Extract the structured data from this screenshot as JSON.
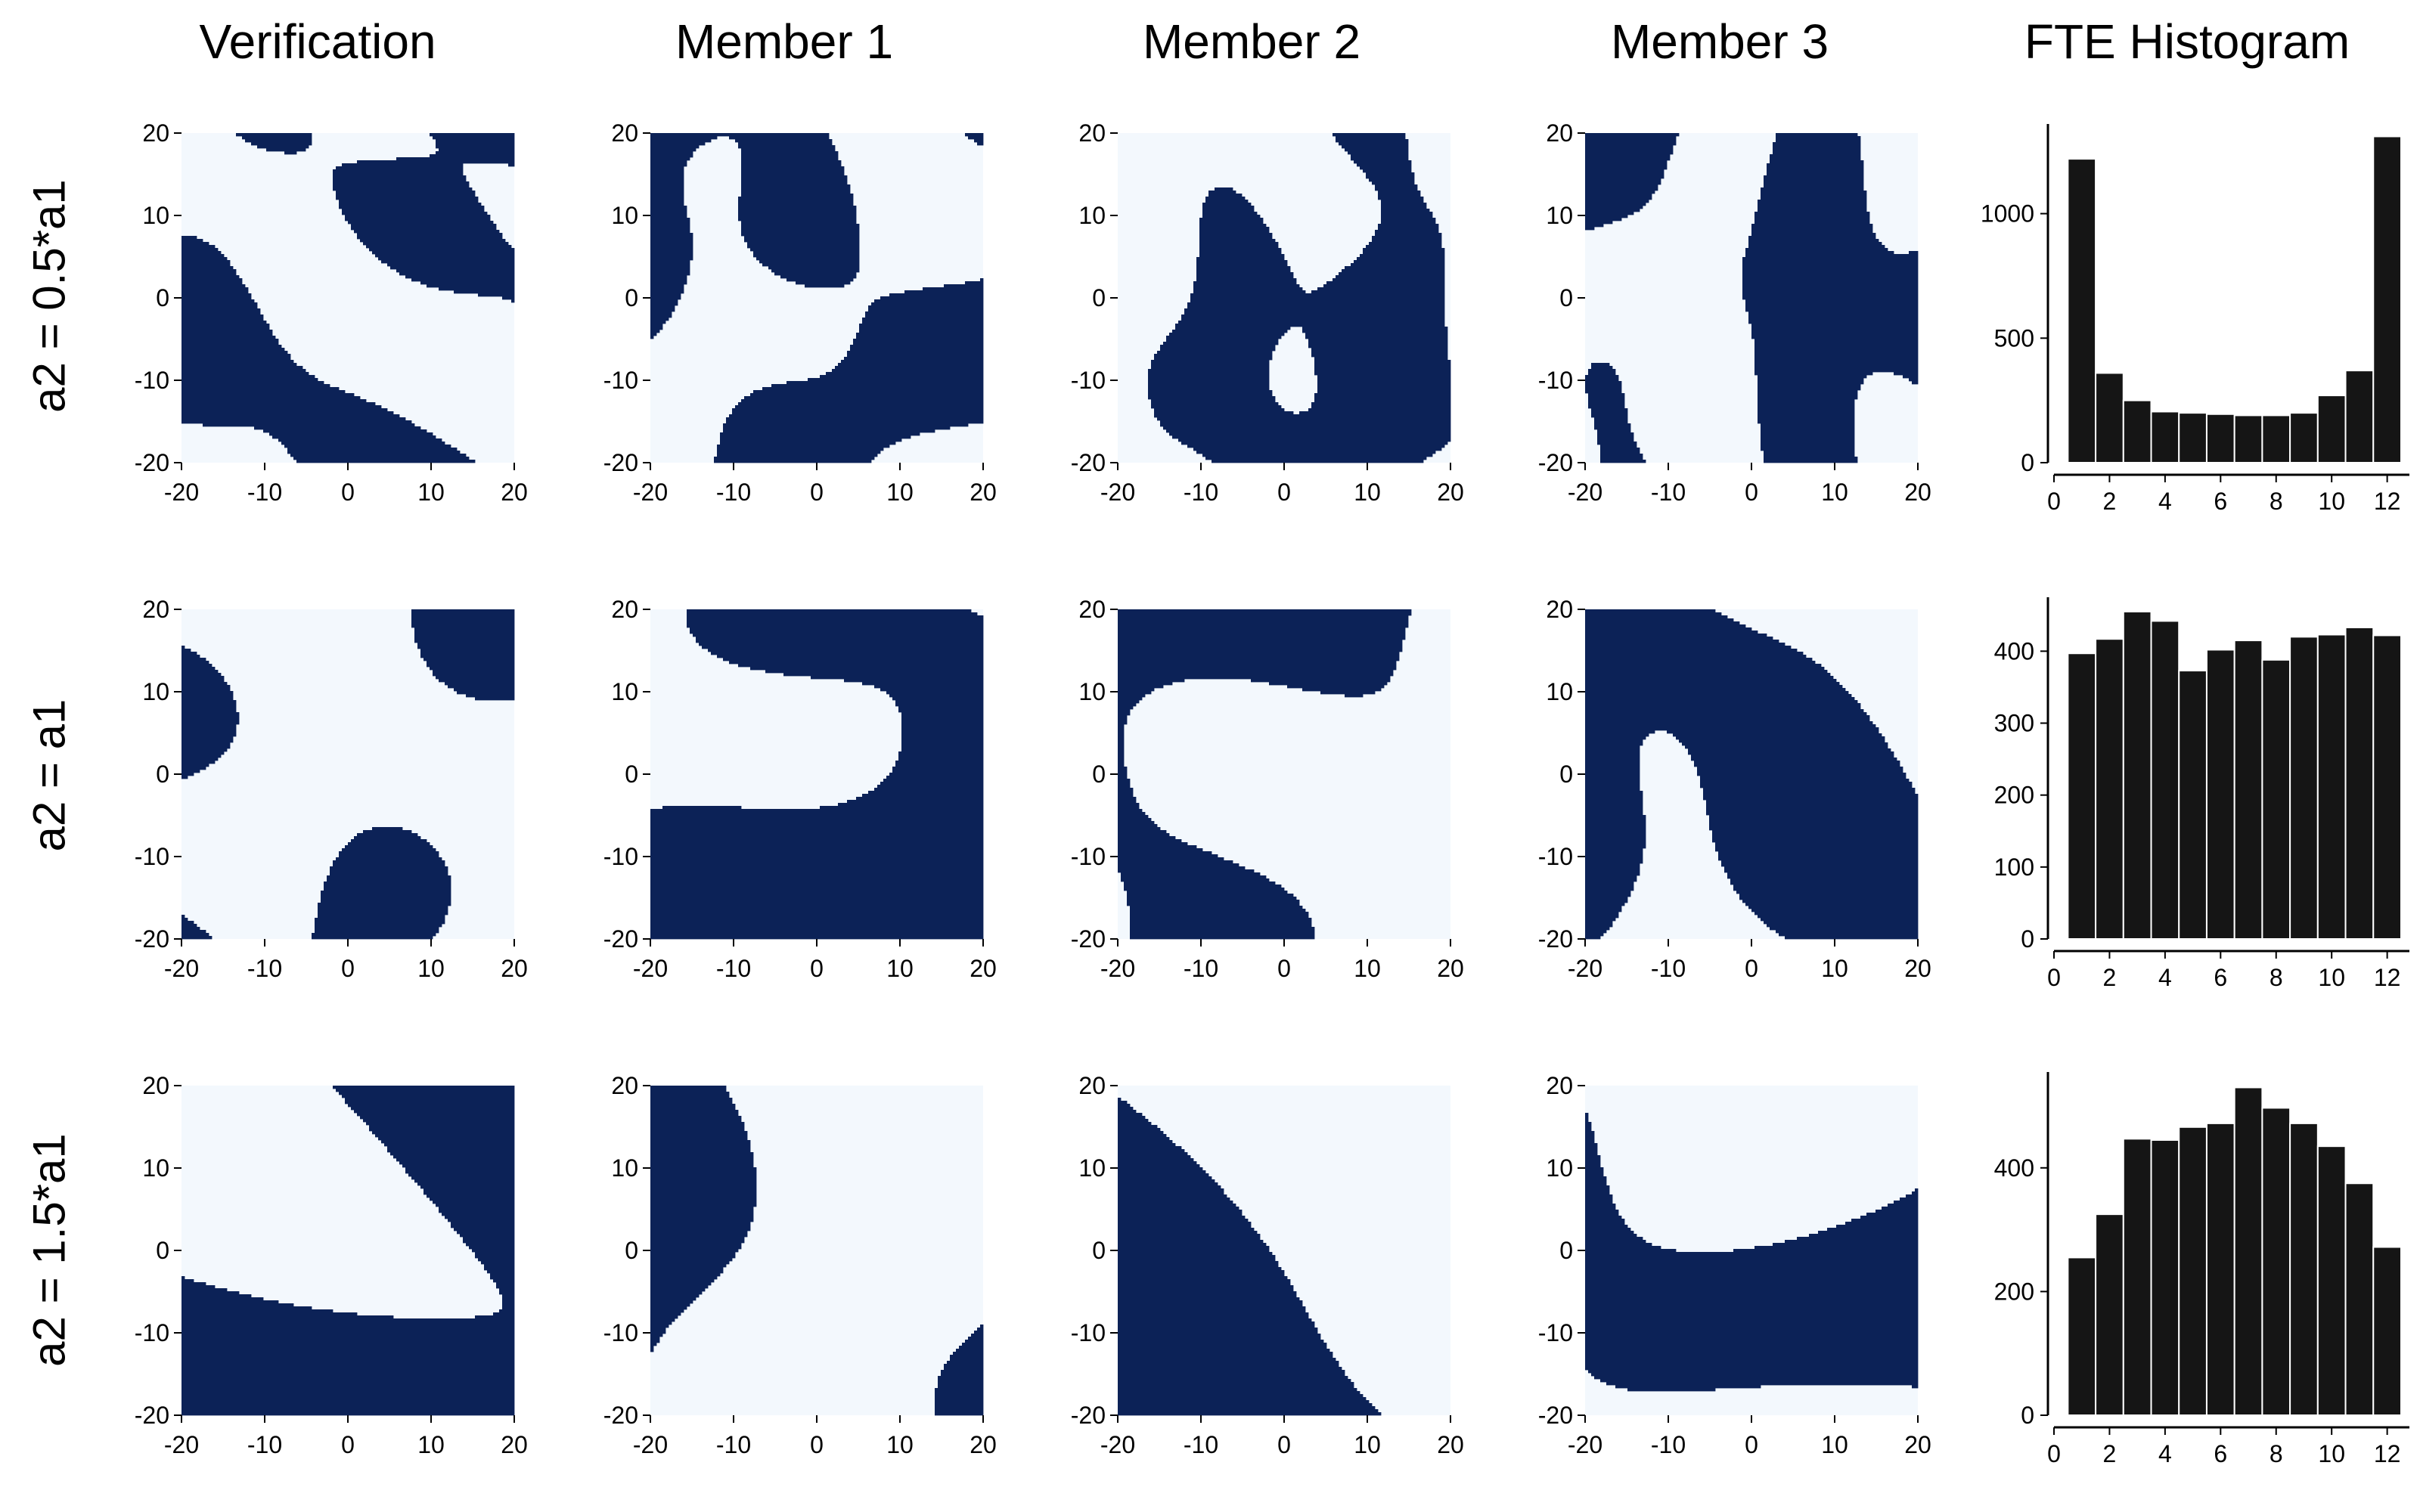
{
  "column_titles": [
    "Verification",
    "Member 1",
    "Member 2",
    "Member 3",
    "FTE Histogram"
  ],
  "row_titles": [
    "a2 = 0.5*a1",
    "a2 = a1",
    "a2 = 1.5*a1"
  ],
  "colors": {
    "field_dark": "#0c2257",
    "field_light": "#f3f8fd",
    "histogram_bar": "#151515",
    "bar_edge": "#ffffff"
  },
  "chart_data": [
    {
      "type": "heatmap",
      "description": "binary random fields, 3 rows x 4 columns",
      "x": {
        "range": [
          -20,
          20
        ],
        "ticks": [
          -20,
          -10,
          0,
          10,
          20
        ]
      },
      "y": {
        "range": [
          -20,
          20
        ],
        "ticks": [
          -20,
          -10,
          0,
          10,
          20
        ]
      },
      "values": [
        "dark",
        "light"
      ]
    },
    {
      "type": "bar",
      "row": "a2 = 0.5*a1",
      "categories": [
        1,
        2,
        3,
        4,
        5,
        6,
        7,
        8,
        9,
        10,
        11,
        12
      ],
      "values": [
        1220,
        360,
        250,
        205,
        200,
        195,
        190,
        190,
        200,
        270,
        370,
        1310
      ],
      "xlim": [
        0,
        12.8
      ],
      "ylim": [
        0,
        1360
      ],
      "xticks": [
        0,
        2,
        4,
        6,
        8,
        10,
        12
      ],
      "yticks": [
        0,
        500,
        1000
      ]
    },
    {
      "type": "bar",
      "row": "a2 = a1",
      "categories": [
        1,
        2,
        3,
        4,
        5,
        6,
        7,
        8,
        9,
        10,
        11,
        12
      ],
      "values": [
        397,
        417,
        455,
        442,
        373,
        402,
        415,
        388,
        420,
        423,
        433,
        422
      ],
      "xlim": [
        0,
        12.8
      ],
      "ylim": [
        0,
        475
      ],
      "xticks": [
        0,
        2,
        4,
        6,
        8,
        10,
        12
      ],
      "yticks": [
        0,
        100,
        200,
        300,
        400
      ]
    },
    {
      "type": "bar",
      "row": "a2 = 1.5*a1",
      "categories": [
        1,
        2,
        3,
        4,
        5,
        6,
        7,
        8,
        9,
        10,
        11,
        12
      ],
      "values": [
        255,
        325,
        447,
        445,
        466,
        472,
        530,
        497,
        472,
        435,
        375,
        272
      ],
      "xlim": [
        0,
        12.8
      ],
      "ylim": [
        0,
        555
      ],
      "xticks": [
        0,
        2,
        4,
        6,
        8,
        10,
        12
      ],
      "yticks": [
        0,
        200,
        400
      ]
    }
  ]
}
